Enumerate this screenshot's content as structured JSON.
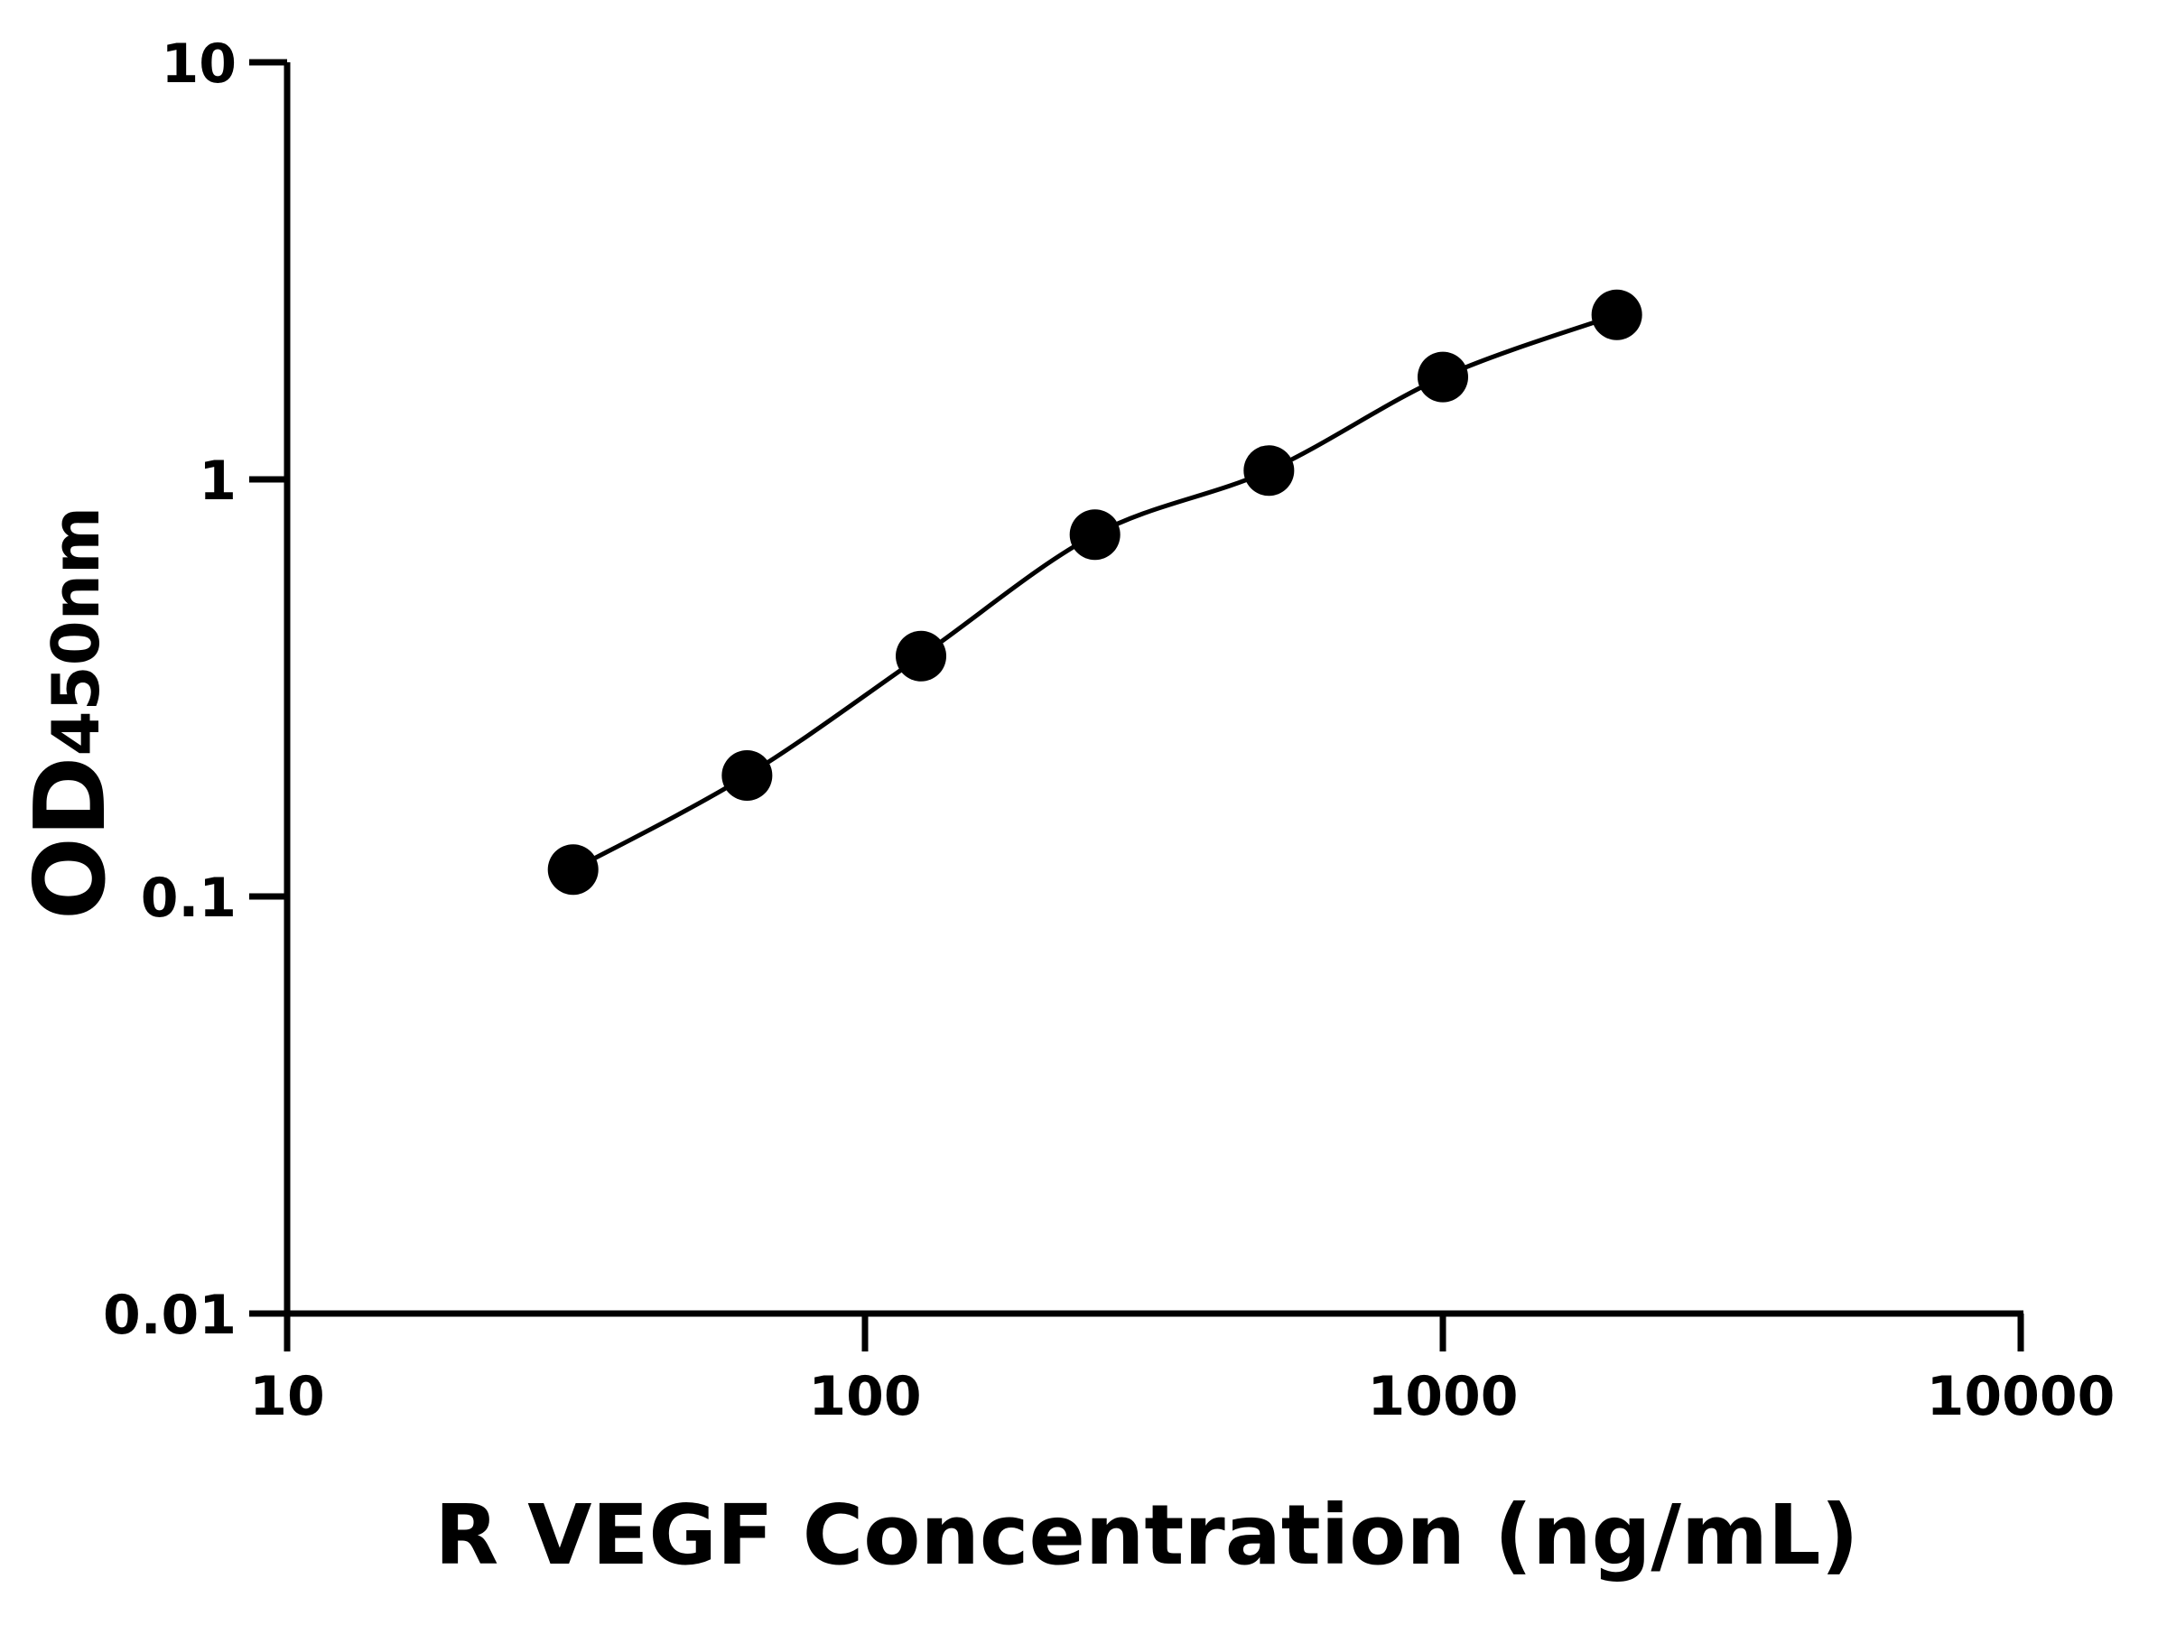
{
  "chart_data": {
    "type": "scatter-line",
    "xlabel": "R VEGF Concentration (ng/mL)",
    "ylabel": "OD",
    "ylabel_subscript": "450nm",
    "x_log": true,
    "y_log": true,
    "xlim": [
      10,
      10000
    ],
    "xticks": [
      10,
      100,
      1000,
      10000
    ],
    "ylim": [
      0.01,
      10
    ],
    "yticks": [
      0.01,
      0.1,
      1,
      10
    ],
    "series": [
      {
        "color": "#000000",
        "x": [
          31.25,
          62.5,
          125,
          250,
          500,
          1000,
          2000
        ],
        "values": [
          0.116,
          0.195,
          0.377,
          0.737,
          1.05,
          1.76,
          2.48
        ]
      }
    ]
  }
}
